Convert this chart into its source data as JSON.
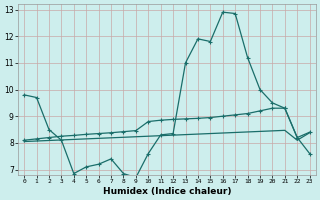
{
  "xlabel": "Humidex (Indice chaleur)",
  "bg_color": "#cdeeed",
  "grid_color": "#c8a8a8",
  "line_color": "#1a6e6a",
  "xlim": [
    -0.5,
    23.5
  ],
  "ylim": [
    6.8,
    13.2
  ],
  "yticks": [
    7,
    8,
    9,
    10,
    11,
    12,
    13
  ],
  "xticks": [
    0,
    1,
    2,
    3,
    4,
    5,
    6,
    7,
    8,
    9,
    10,
    11,
    12,
    13,
    14,
    15,
    16,
    17,
    18,
    19,
    20,
    21,
    22,
    23
  ],
  "line1_x": [
    0,
    1,
    2,
    3,
    4,
    5,
    6,
    7,
    8,
    9,
    10,
    11,
    12,
    13,
    14,
    15,
    16,
    17,
    18,
    19,
    20,
    21,
    22,
    23
  ],
  "line1_y": [
    9.8,
    9.7,
    8.5,
    8.1,
    6.85,
    7.1,
    7.2,
    7.4,
    6.85,
    6.7,
    7.6,
    8.3,
    8.35,
    11.0,
    11.9,
    11.8,
    12.9,
    12.85,
    11.2,
    10.0,
    9.5,
    9.3,
    8.2,
    7.6
  ],
  "line2_x": [
    0,
    1,
    2,
    3,
    4,
    5,
    6,
    7,
    8,
    9,
    10,
    11,
    12,
    13,
    14,
    15,
    16,
    17,
    18,
    19,
    20,
    21,
    22,
    23
  ],
  "line2_y": [
    8.1,
    8.15,
    8.2,
    8.25,
    8.28,
    8.32,
    8.35,
    8.38,
    8.42,
    8.46,
    8.8,
    8.85,
    8.88,
    8.9,
    8.92,
    8.95,
    9.0,
    9.05,
    9.1,
    9.2,
    9.3,
    9.3,
    8.2,
    8.4
  ],
  "line3_x": [
    0,
    1,
    2,
    3,
    4,
    5,
    6,
    7,
    8,
    9,
    10,
    11,
    12,
    13,
    14,
    15,
    16,
    17,
    18,
    19,
    20,
    21,
    22,
    23
  ],
  "line3_y": [
    8.05,
    8.07,
    8.09,
    8.11,
    8.13,
    8.15,
    8.17,
    8.19,
    8.21,
    8.23,
    8.25,
    8.27,
    8.29,
    8.31,
    8.33,
    8.35,
    8.37,
    8.39,
    8.41,
    8.43,
    8.45,
    8.47,
    8.1,
    8.38
  ]
}
